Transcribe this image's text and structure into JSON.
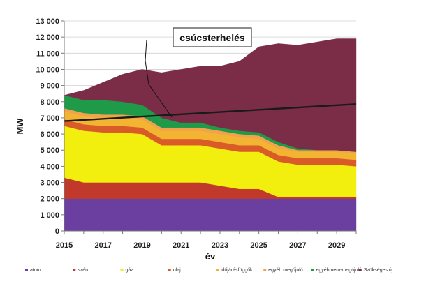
{
  "chart_data": {
    "type": "area",
    "stacked": true,
    "x": [
      2015,
      2016,
      2017,
      2018,
      2019,
      2020,
      2021,
      2022,
      2023,
      2024,
      2025,
      2026,
      2027,
      2028,
      2029,
      2030
    ],
    "xticks": [
      "2015",
      "2017",
      "2019",
      "2021",
      "2023",
      "2025",
      "2027",
      "2029"
    ],
    "xlim": [
      2015,
      2030
    ],
    "ylim": [
      0,
      13000
    ],
    "yticks": [
      "0",
      "1 000",
      "2 000",
      "3 000",
      "4 000",
      "5 000",
      "6 000",
      "7 000",
      "8 000",
      "9 000",
      "10 000",
      "11 000",
      "12 000",
      "13 000"
    ],
    "xlabel": "év",
    "ylabel": "MW",
    "grid": true,
    "legend_position": "bottom",
    "series": [
      {
        "name": "atom",
        "color": "#6b3fa0",
        "values": [
          2000,
          2000,
          2000,
          2000,
          2000,
          2000,
          2000,
          2000,
          2000,
          2000,
          2000,
          2000,
          2000,
          2000,
          2000,
          2000
        ]
      },
      {
        "name": "szén",
        "color": "#c0392b",
        "values": [
          1300,
          1000,
          1000,
          1000,
          1000,
          1000,
          1000,
          1000,
          800,
          600,
          600,
          100,
          100,
          100,
          100,
          100
        ]
      },
      {
        "name": "gáz",
        "color": "#f2ee0e",
        "values": [
          3200,
          3200,
          3100,
          3100,
          3000,
          2300,
          2300,
          2300,
          2300,
          2300,
          2300,
          2200,
          2000,
          2000,
          2000,
          1900
        ]
      },
      {
        "name": "olaj",
        "color": "#d95b27",
        "values": [
          400,
          400,
          400,
          400,
          400,
          400,
          400,
          400,
          400,
          400,
          400,
          400,
          400,
          400,
          400,
          400
        ]
      },
      {
        "name": "időjárásfüggők",
        "color": "#f2b431",
        "values": [
          500,
          500,
          500,
          500,
          500,
          500,
          500,
          500,
          500,
          500,
          400,
          400,
          400,
          400,
          400,
          400
        ]
      },
      {
        "name": "egyéb megújuló",
        "color": "#f2a24c",
        "values": [
          200,
          200,
          200,
          200,
          200,
          200,
          200,
          200,
          200,
          200,
          200,
          200,
          100,
          100,
          100,
          100
        ]
      },
      {
        "name": "egyéb nem-megújuló",
        "color": "#1e9a48",
        "values": [
          800,
          800,
          900,
          800,
          700,
          600,
          300,
          300,
          200,
          200,
          200,
          200,
          100,
          0,
          0,
          0
        ]
      },
      {
        "name": "Szükséges új",
        "color": "#7b2d48",
        "values": [
          0,
          600,
          1100,
          1700,
          2200,
          2800,
          3300,
          3500,
          3800,
          4300,
          5300,
          6100,
          6400,
          6700,
          6900,
          7000
        ]
      }
    ],
    "line": {
      "name": "csúcsterhelés",
      "color": "#1a1a1a",
      "values": [
        6800,
        6870,
        6940,
        7010,
        7080,
        7150,
        7220,
        7290,
        7360,
        7430,
        7500,
        7570,
        7640,
        7710,
        7780,
        7850
      ]
    },
    "annotation": "csúcsterhelés"
  }
}
